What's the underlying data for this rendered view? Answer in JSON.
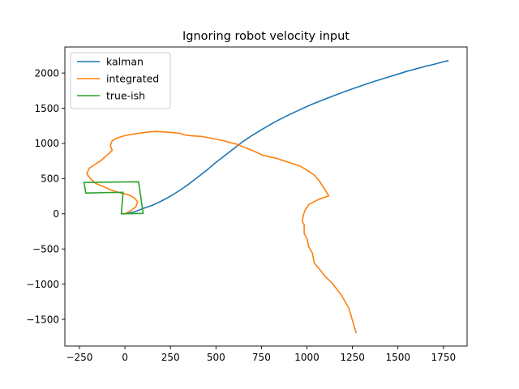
{
  "chart_data": {
    "type": "line",
    "title": "Ignoring robot velocity input",
    "xlabel": "",
    "ylabel": "",
    "xlim": [
      -330,
      1880
    ],
    "ylim": [
      -1880,
      2370
    ],
    "xticks": [
      -250,
      0,
      250,
      500,
      750,
      1000,
      1250,
      1500,
      1750
    ],
    "yticks": [
      -1500,
      -1000,
      -500,
      0,
      500,
      1000,
      1500,
      2000
    ],
    "xtick_labels": [
      "−250",
      "0",
      "250",
      "500",
      "750",
      "1000",
      "1250",
      "1500",
      "1750"
    ],
    "ytick_labels": [
      "−1500",
      "−1000",
      "−500",
      "0",
      "500",
      "1000",
      "1500",
      "2000"
    ],
    "grid": false,
    "legend_position": "top-left",
    "series": [
      {
        "name": "kalman",
        "color": "#1f77b4",
        "points": [
          [
            0,
            0
          ],
          [
            50,
            25
          ],
          [
            100,
            75
          ],
          [
            150,
            120
          ],
          [
            200,
            180
          ],
          [
            250,
            250
          ],
          [
            300,
            330
          ],
          [
            350,
            420
          ],
          [
            400,
            520
          ],
          [
            450,
            620
          ],
          [
            500,
            730
          ],
          [
            550,
            830
          ],
          [
            600,
            930
          ],
          [
            650,
            1030
          ],
          [
            700,
            1115
          ],
          [
            750,
            1195
          ],
          [
            800,
            1270
          ],
          [
            850,
            1340
          ],
          [
            900,
            1405
          ],
          [
            950,
            1465
          ],
          [
            1000,
            1525
          ],
          [
            1050,
            1580
          ],
          [
            1100,
            1630
          ],
          [
            1150,
            1680
          ],
          [
            1200,
            1730
          ],
          [
            1250,
            1775
          ],
          [
            1300,
            1820
          ],
          [
            1350,
            1865
          ],
          [
            1400,
            1905
          ],
          [
            1450,
            1945
          ],
          [
            1500,
            1985
          ],
          [
            1550,
            2025
          ],
          [
            1600,
            2060
          ],
          [
            1650,
            2095
          ],
          [
            1700,
            2125
          ],
          [
            1750,
            2160
          ],
          [
            1775,
            2175
          ]
        ]
      },
      {
        "name": "integrated",
        "color": "#ff7f0e",
        "points": [
          [
            0,
            0
          ],
          [
            30,
            40
          ],
          [
            60,
            100
          ],
          [
            70,
            170
          ],
          [
            50,
            230
          ],
          [
            20,
            270
          ],
          [
            -30,
            300
          ],
          [
            -80,
            340
          ],
          [
            -120,
            390
          ],
          [
            -160,
            430
          ],
          [
            -190,
            500
          ],
          [
            -210,
            570
          ],
          [
            -195,
            650
          ],
          [
            -165,
            700
          ],
          [
            -130,
            760
          ],
          [
            -100,
            830
          ],
          [
            -70,
            900
          ],
          [
            -80,
            970
          ],
          [
            -70,
            1040
          ],
          [
            -40,
            1080
          ],
          [
            0,
            1110
          ],
          [
            40,
            1130
          ],
          [
            80,
            1145
          ],
          [
            120,
            1160
          ],
          [
            170,
            1170
          ],
          [
            230,
            1160
          ],
          [
            300,
            1145
          ],
          [
            330,
            1120
          ],
          [
            360,
            1110
          ],
          [
            420,
            1100
          ],
          [
            480,
            1070
          ],
          [
            540,
            1040
          ],
          [
            580,
            1010
          ],
          [
            620,
            985
          ],
          [
            650,
            950
          ],
          [
            700,
            900
          ],
          [
            760,
            830
          ],
          [
            830,
            790
          ],
          [
            900,
            730
          ],
          [
            960,
            680
          ],
          [
            1000,
            620
          ],
          [
            1040,
            550
          ],
          [
            1070,
            460
          ],
          [
            1120,
            255
          ],
          [
            1060,
            200
          ],
          [
            1010,
            130
          ],
          [
            990,
            50
          ],
          [
            980,
            -20
          ],
          [
            975,
            -110
          ],
          [
            985,
            -160
          ],
          [
            985,
            -280
          ],
          [
            1000,
            -350
          ],
          [
            1010,
            -470
          ],
          [
            1030,
            -560
          ],
          [
            1040,
            -700
          ],
          [
            1070,
            -790
          ],
          [
            1100,
            -890
          ],
          [
            1140,
            -990
          ],
          [
            1190,
            -1160
          ],
          [
            1230,
            -1340
          ],
          [
            1270,
            -1690
          ]
        ]
      },
      {
        "name": "true-ish",
        "color": "#2ca02c",
        "points": [
          [
            -20,
            0
          ],
          [
            100,
            5
          ],
          [
            75,
            455
          ],
          [
            -225,
            445
          ],
          [
            -215,
            295
          ],
          [
            -10,
            305
          ],
          [
            -20,
            0
          ]
        ]
      }
    ]
  }
}
